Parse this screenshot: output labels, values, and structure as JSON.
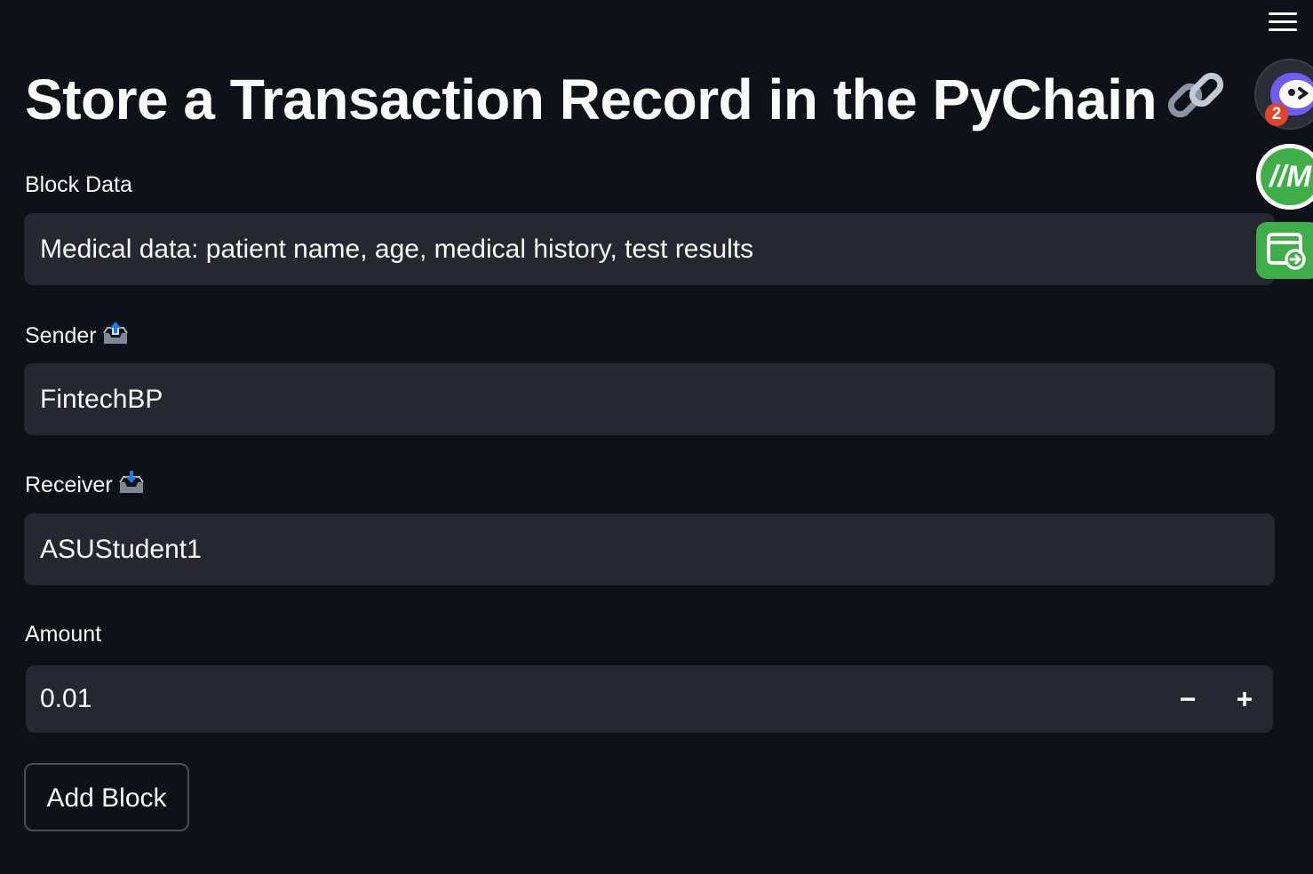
{
  "header": {
    "title": "Store a Transaction Record in the PyChain",
    "title_icon": "link-icon",
    "menu_icon": "hamburger-menu-icon"
  },
  "form": {
    "block_data": {
      "label": "Block Data",
      "value": "Medical data: patient name, age, medical history, test results"
    },
    "sender": {
      "label": "Sender",
      "icon": "outbox-tray-icon",
      "value": "FintechBP"
    },
    "receiver": {
      "label": "Receiver",
      "icon": "inbox-tray-icon",
      "value": "ASUStudent1"
    },
    "amount": {
      "label": "Amount",
      "value": "0.01",
      "decrement_icon": "minus-icon",
      "increment_icon": "plus-icon"
    },
    "submit_label": "Add Block"
  },
  "extensions": {
    "items": [
      {
        "icon": "chat-bot-extension-icon",
        "badge": "2"
      },
      {
        "icon": "mm-extension-icon",
        "text": "//M"
      },
      {
        "icon": "window-redirect-extension-icon"
      }
    ]
  },
  "colors": {
    "background": "#0e1117",
    "input_background": "#262730",
    "text": "#fafafa",
    "button_border": "#4b4d57",
    "extension_green": "#3fae49",
    "badge_red": "#e0442a"
  }
}
